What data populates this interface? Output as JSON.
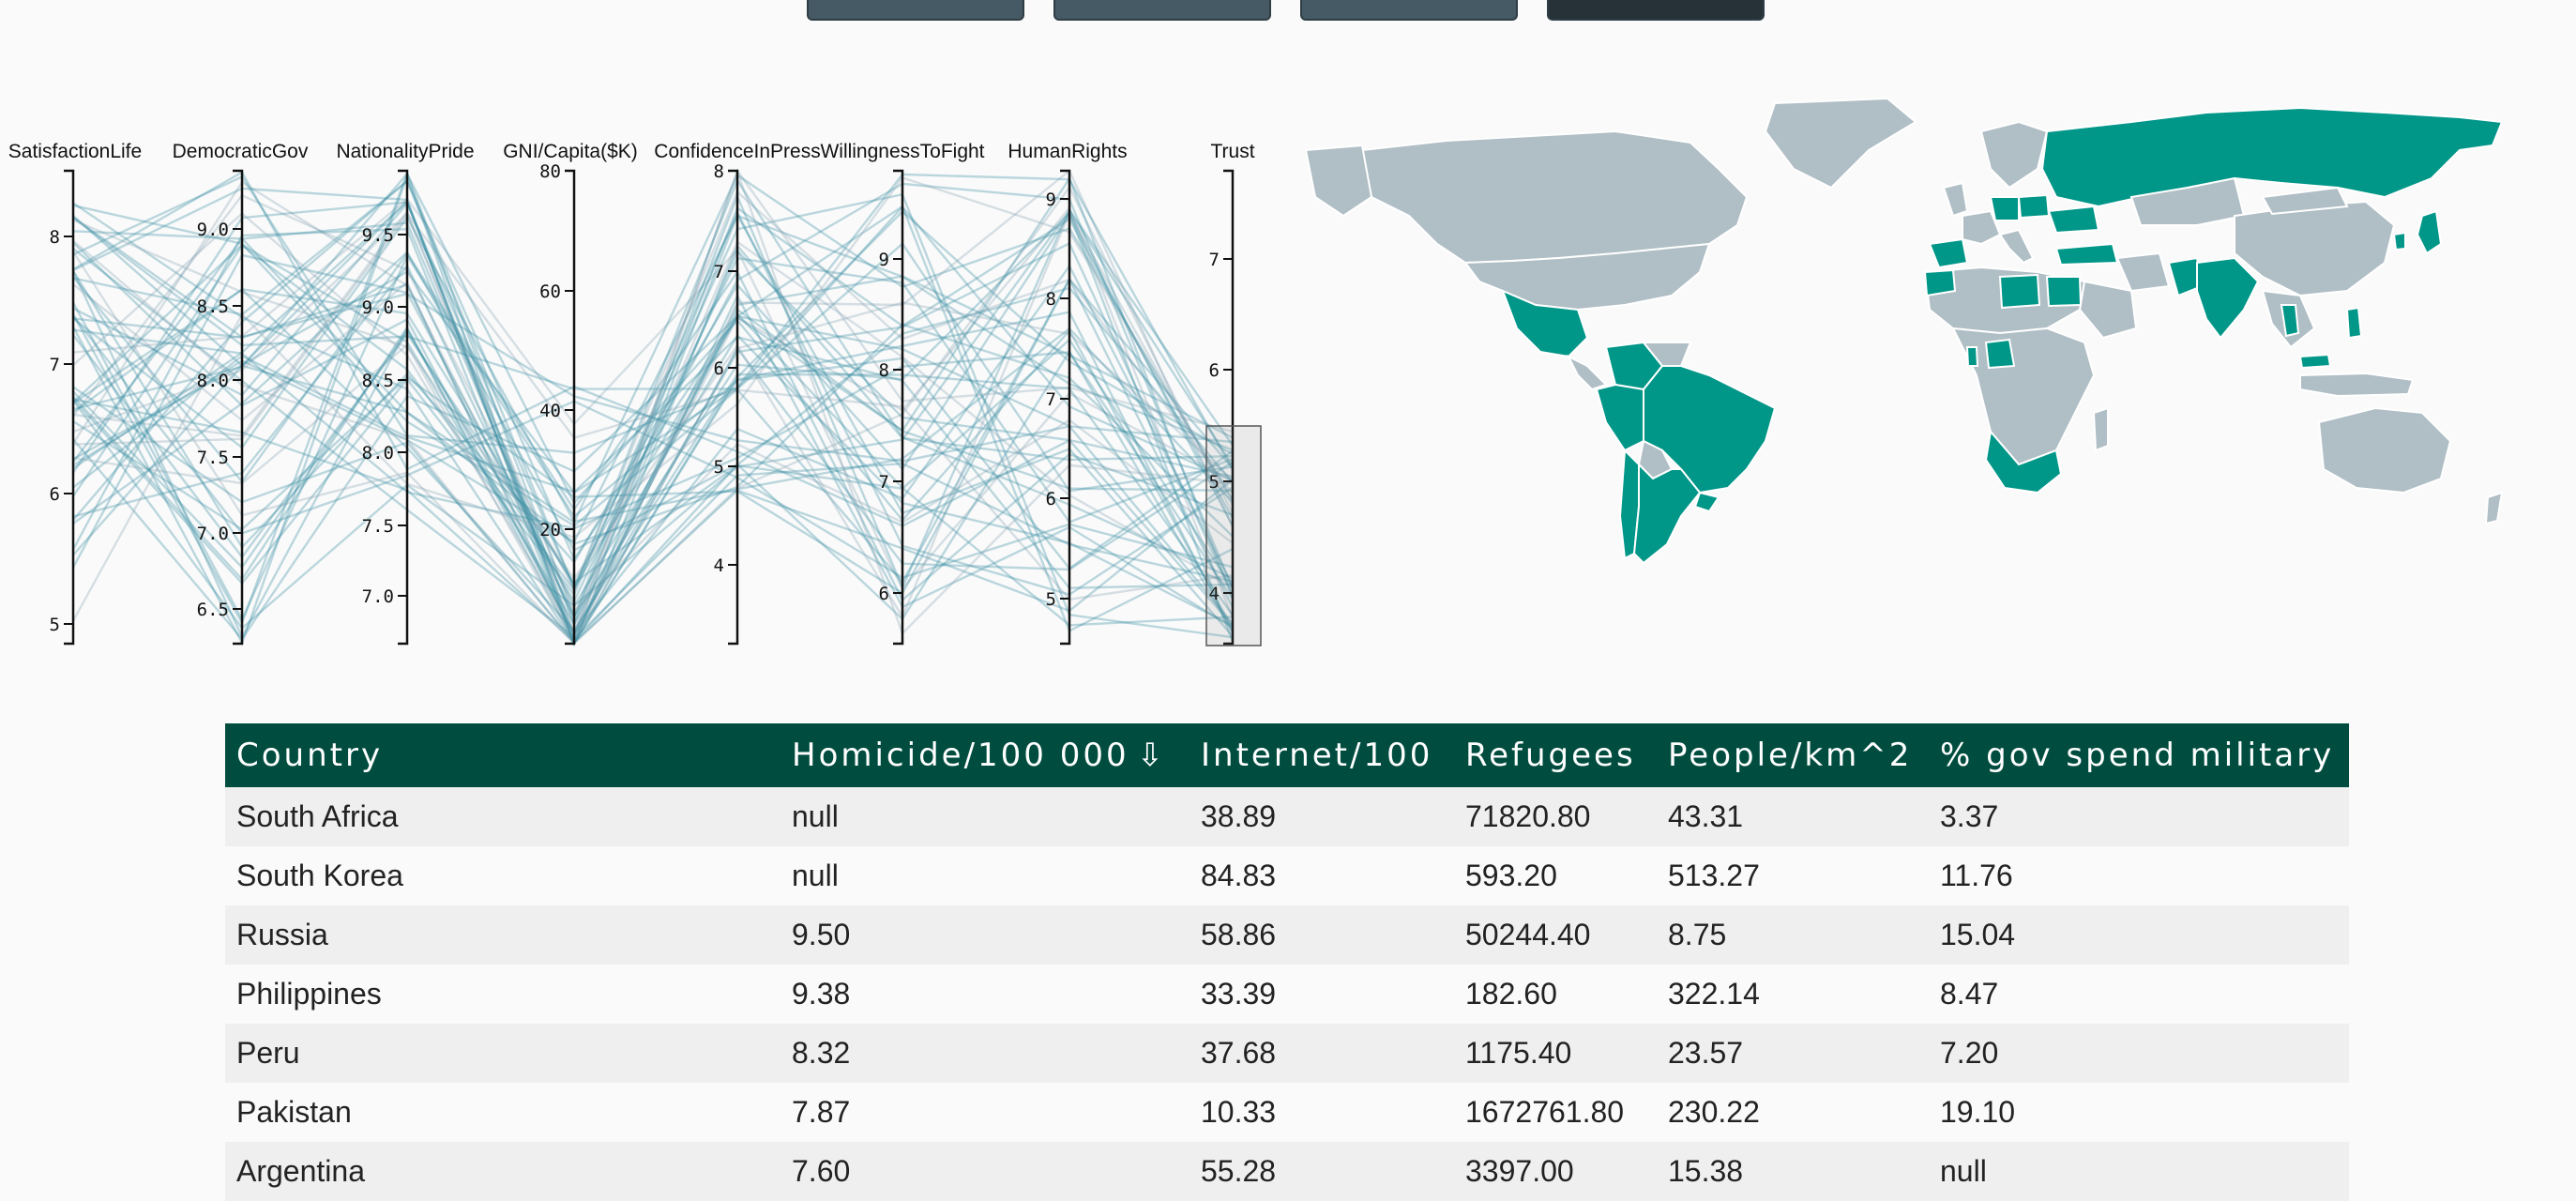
{
  "colors": {
    "header_bg": "#004d40",
    "highlight_country": "#009688",
    "base_country": "#b0bec5",
    "line": "#3a8fa3",
    "button": "#455a64"
  },
  "buttons": [
    "",
    "",
    "",
    ""
  ],
  "parallel_axes": [
    {
      "name": "SatisfactionLife",
      "ticks": [
        "8",
        "7",
        "6",
        "5"
      ]
    },
    {
      "name": "DemocraticGov",
      "ticks": [
        "9.0",
        "8.5",
        "8.0",
        "7.5",
        "7.0",
        "6.5"
      ]
    },
    {
      "name": "NationalityPride",
      "ticks": [
        "9.5",
        "9.0",
        "8.5",
        "8.0",
        "7.5",
        "7.0"
      ]
    },
    {
      "name": "GNI/Capita($K)",
      "ticks": [
        "80",
        "60",
        "40",
        "20"
      ]
    },
    {
      "name": "ConfidenceInPress",
      "ticks": [
        "8",
        "7",
        "6",
        "5",
        "4"
      ]
    },
    {
      "name": "WillingnessToFight",
      "ticks": [
        "9",
        "8",
        "7",
        "6"
      ]
    },
    {
      "name": "HumanRights",
      "ticks": [
        "9",
        "8",
        "7",
        "6",
        "5"
      ]
    },
    {
      "name": "Trust",
      "ticks": [
        "7",
        "6",
        "5",
        "4"
      ]
    }
  ],
  "table": {
    "columns": [
      "Country",
      "Homicide/100 000",
      "Internet/100",
      "Refugees",
      "People/km^2",
      "% gov spend military"
    ],
    "sort_indicator": "⇩",
    "rows": [
      [
        "South Africa",
        "null",
        "38.89",
        "71820.80",
        "43.31",
        "3.37"
      ],
      [
        "South Korea",
        "null",
        "84.83",
        "593.20",
        "513.27",
        "11.76"
      ],
      [
        "Russia",
        "9.50",
        "58.86",
        "50244.40",
        "8.75",
        "15.04"
      ],
      [
        "Philippines",
        "9.38",
        "33.39",
        "182.60",
        "322.14",
        "8.47"
      ],
      [
        "Peru",
        "8.32",
        "37.68",
        "1175.40",
        "23.57",
        "7.20"
      ],
      [
        "Pakistan",
        "7.87",
        "10.33",
        "1672761.80",
        "230.22",
        "19.10"
      ],
      [
        "Argentina",
        "7.60",
        "55.28",
        "3397.00",
        "15.38",
        "null"
      ]
    ]
  }
}
